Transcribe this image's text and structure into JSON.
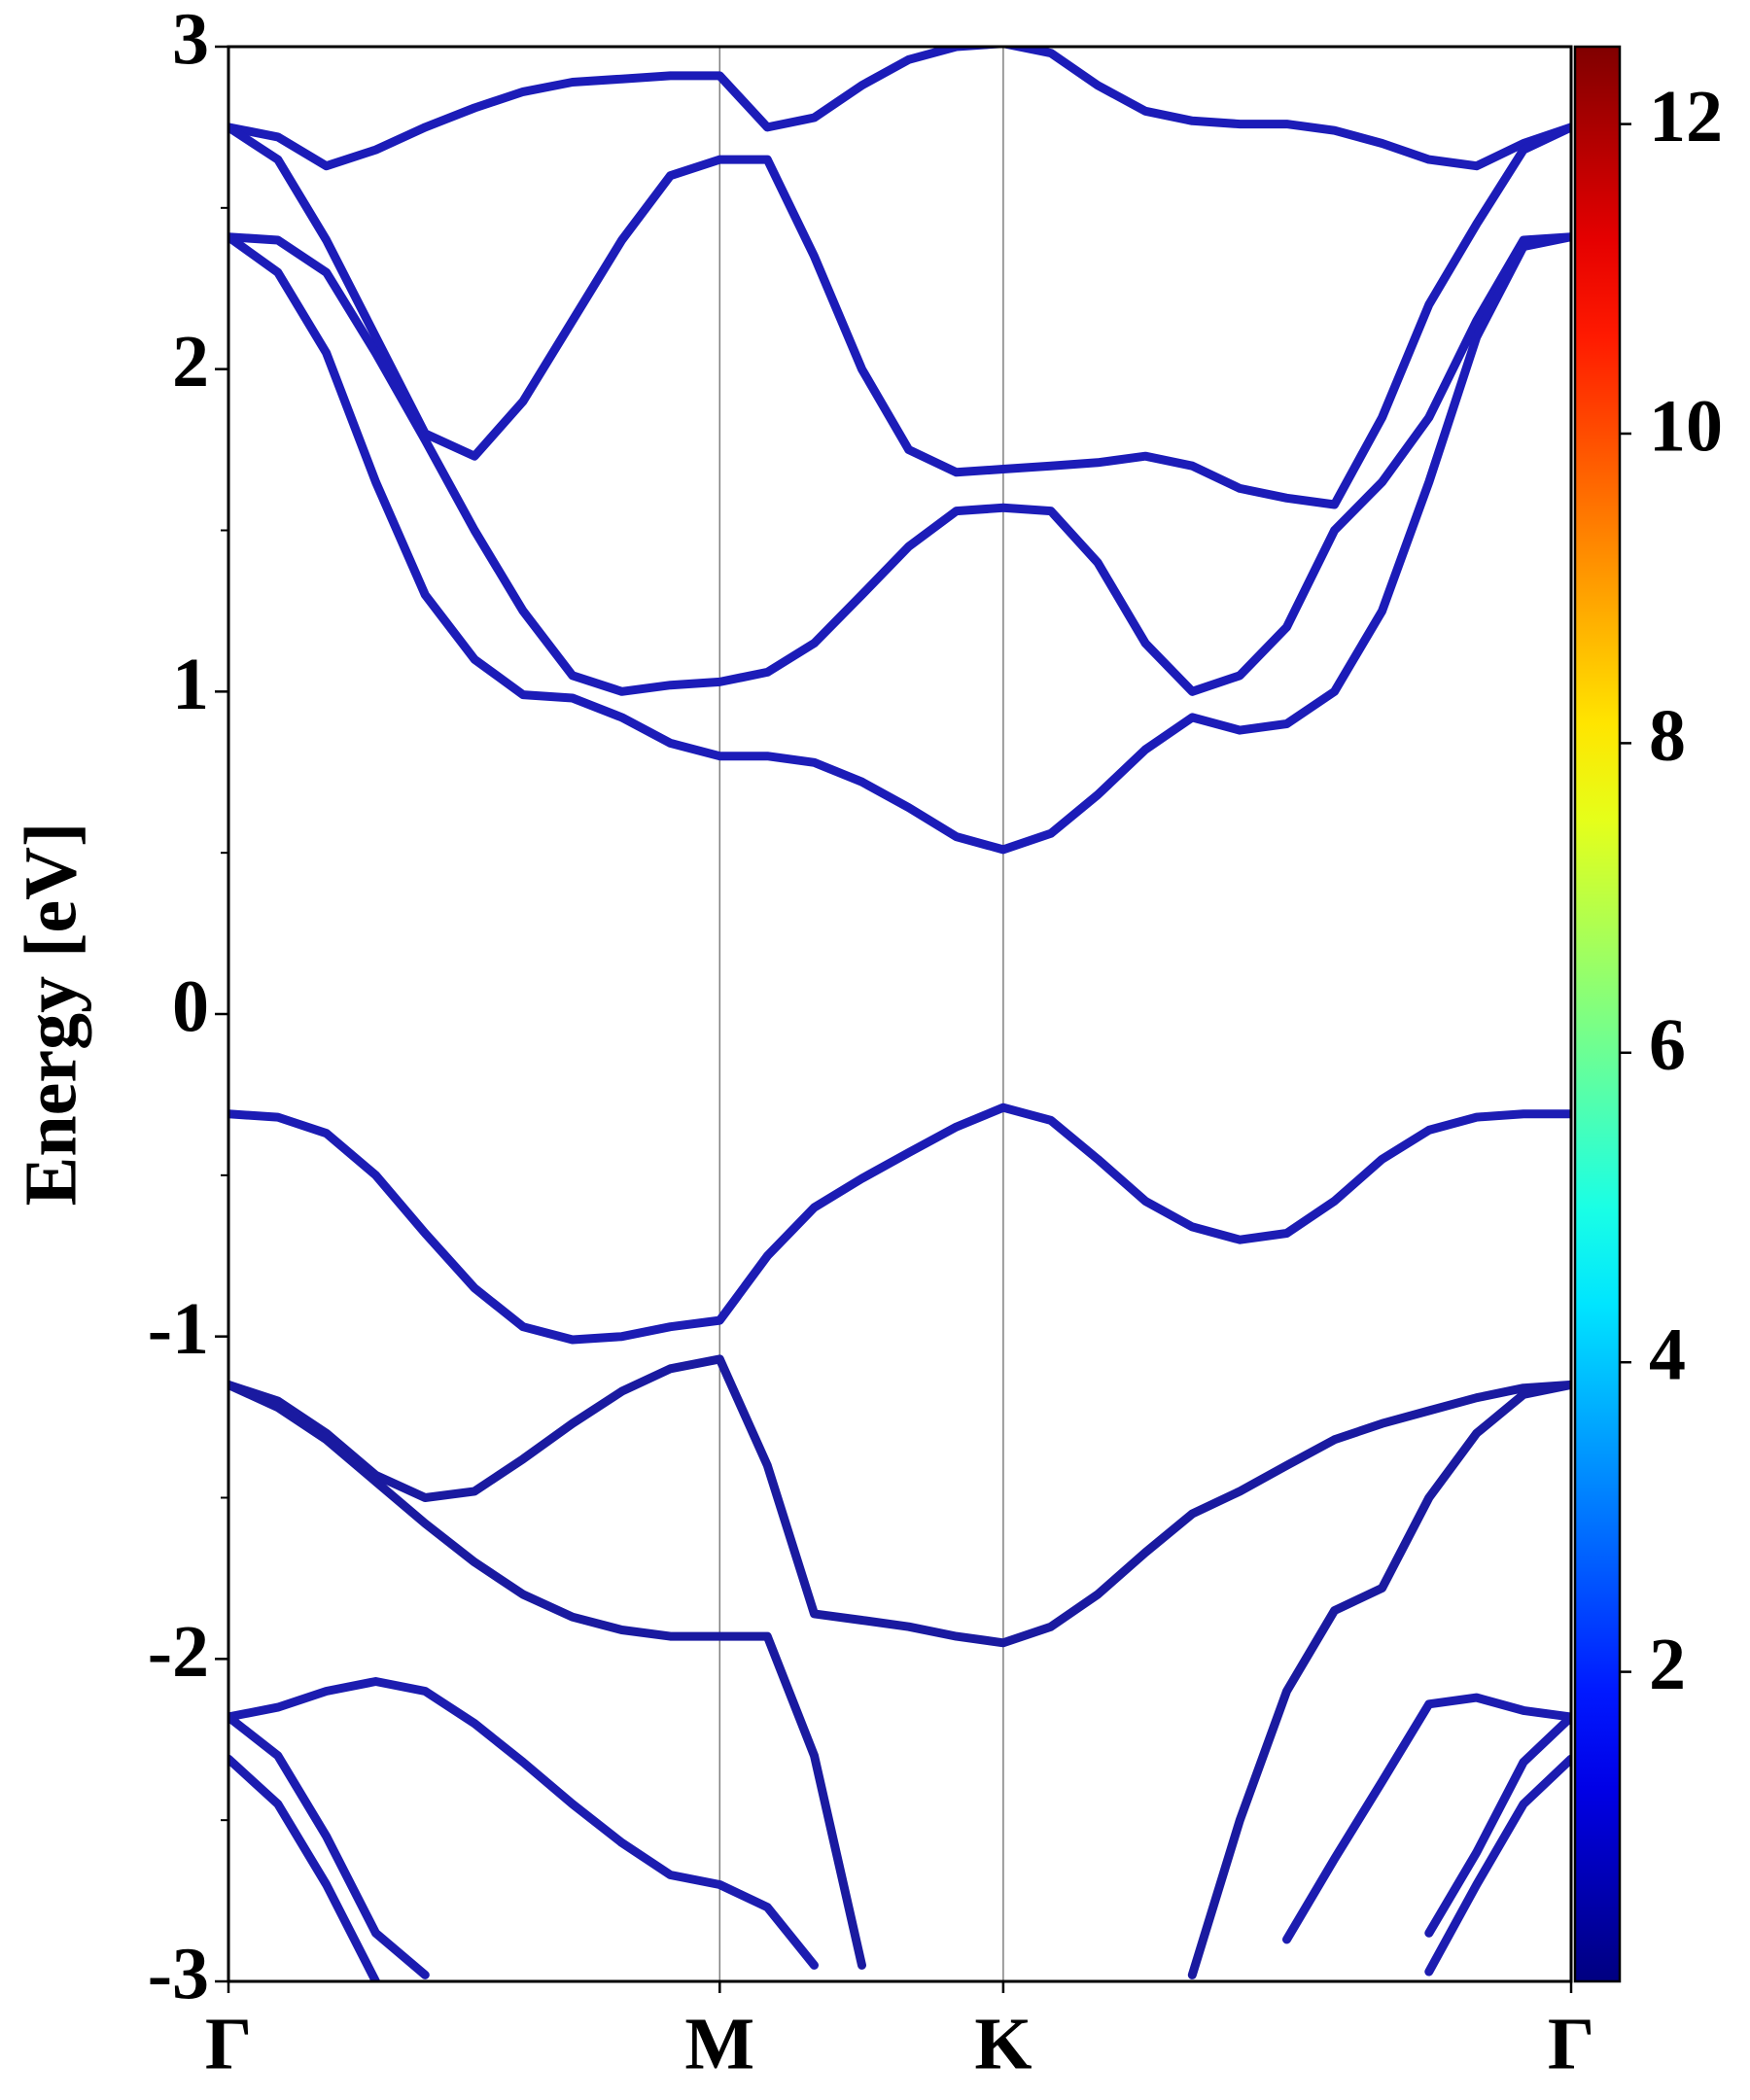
{
  "chart_data": {
    "type": "line",
    "y_label": "Energy [eV]",
    "x": [
      0,
      0.058,
      0.115,
      0.173,
      0.231,
      0.289,
      0.346,
      0.404,
      0.462,
      0.519,
      0.577,
      0.633,
      0.688,
      0.744,
      0.799,
      0.855,
      0.91,
      0.966,
      1.021,
      1.077,
      1.132,
      1.188,
      1.243,
      1.299,
      1.355,
      1.41,
      1.466,
      1.521,
      1.577
    ],
    "xlim": [
      0,
      1.577
    ],
    "xticks": [
      {
        "value": 0,
        "label": "Γ"
      },
      {
        "value": 0.577,
        "label": "M"
      },
      {
        "value": 0.91,
        "label": "K"
      },
      {
        "value": 1.577,
        "label": "Γ"
      }
    ],
    "xgrid": true,
    "ylim": [
      -3,
      3
    ],
    "yticks": [
      -3,
      -2,
      -1,
      0,
      1,
      2,
      3
    ],
    "yminorticks": [
      -2.5,
      -1.5,
      -0.5,
      0.5,
      1.5,
      2.5
    ],
    "series": [
      {
        "color": "#1c1cb8",
        "values": [
          2.75,
          2.72,
          2.63,
          2.68,
          2.75,
          2.81,
          2.86,
          2.89,
          2.9,
          2.91,
          2.91,
          2.75,
          2.78,
          2.88,
          2.96,
          3.0,
          3.01,
          2.98,
          2.88,
          2.8,
          2.77,
          2.76,
          2.76,
          2.74,
          2.7,
          2.65,
          2.63,
          2.7,
          2.75
        ]
      },
      {
        "color": "#1c1cb8",
        "values": [
          2.75,
          2.65,
          2.4,
          2.1,
          1.8,
          1.73,
          1.9,
          2.15,
          2.4,
          2.6,
          2.65,
          2.65,
          2.35,
          2.0,
          1.75,
          1.68,
          1.69,
          1.7,
          1.71,
          1.73,
          1.7,
          1.63,
          1.6,
          1.58,
          1.85,
          2.2,
          2.45,
          2.68,
          2.75
        ]
      },
      {
        "color": "#1c1cb8",
        "values": [
          2.41,
          2.4,
          2.3,
          2.05,
          1.78,
          1.5,
          1.25,
          1.05,
          1.0,
          1.02,
          1.03,
          1.06,
          1.15,
          1.3,
          1.45,
          1.56,
          1.57,
          1.56,
          1.4,
          1.15,
          1.0,
          1.05,
          1.2,
          1.5,
          1.65,
          1.85,
          2.15,
          2.4,
          2.41
        ]
      },
      {
        "color": "#1c1cb8",
        "values": [
          2.41,
          2.3,
          2.05,
          1.65,
          1.3,
          1.1,
          0.99,
          0.98,
          0.92,
          0.84,
          0.8,
          0.8,
          0.78,
          0.72,
          0.64,
          0.55,
          0.51,
          0.56,
          0.68,
          0.82,
          0.92,
          0.88,
          0.9,
          1.0,
          1.25,
          1.65,
          2.1,
          2.38,
          2.41
        ]
      },
      {
        "color": "#1c1cb4",
        "values": [
          -0.31,
          -0.32,
          -0.37,
          -0.5,
          -0.68,
          -0.85,
          -0.97,
          -1.01,
          -1.0,
          -0.97,
          -0.95,
          -0.75,
          -0.6,
          -0.51,
          -0.43,
          -0.35,
          -0.29,
          -0.33,
          -0.45,
          -0.58,
          -0.66,
          -0.7,
          -0.68,
          -0.58,
          -0.45,
          -0.36,
          -0.32,
          -0.31,
          -0.31
        ]
      },
      {
        "color": "#1a1aa0",
        "values": [
          -1.15,
          -1.2,
          -1.3,
          -1.43,
          -1.5,
          -1.48,
          -1.38,
          -1.27,
          -1.17,
          -1.1,
          -1.07,
          -1.4,
          -1.86,
          -1.88,
          -1.9,
          -1.93,
          -1.95,
          -1.9,
          -1.8,
          -1.67,
          -1.55,
          -1.48,
          -1.4,
          -1.32,
          -1.27,
          -1.23,
          -1.19,
          -1.16,
          -1.15
        ]
      },
      {
        "color": "#1a1aa0",
        "values": [
          -1.15,
          -1.22,
          -1.32,
          -1.45,
          -1.58,
          -1.7,
          -1.8,
          -1.87,
          -1.91,
          -1.93,
          -1.93,
          -1.93,
          -2.3,
          -2.95,
          null,
          null,
          null,
          null,
          null,
          null,
          -2.98,
          -2.5,
          -2.1,
          -1.85,
          -1.78,
          -1.5,
          -1.3,
          -1.18,
          -1.15
        ]
      },
      {
        "color": "#1c1cb0",
        "values": [
          -2.18,
          -2.15,
          -2.1,
          -2.07,
          -2.1,
          -2.2,
          -2.32,
          -2.45,
          -2.57,
          -2.67,
          -2.7,
          -2.77,
          -2.95,
          null,
          null,
          null,
          null,
          null,
          null,
          null,
          null,
          null,
          -2.87,
          -2.62,
          -2.38,
          -2.14,
          -2.12,
          -2.16,
          -2.18
        ]
      },
      {
        "color": "#1c1cb0",
        "values": [
          -2.18,
          -2.3,
          -2.55,
          -2.85,
          -2.98,
          null,
          null,
          null,
          null,
          null,
          null,
          null,
          null,
          null,
          null,
          null,
          null,
          null,
          null,
          null,
          null,
          null,
          null,
          null,
          null,
          -2.85,
          -2.6,
          -2.32,
          -2.18
        ]
      },
      {
        "color": "#1c1cb0",
        "values": [
          -2.31,
          -2.45,
          -2.7,
          -3.0,
          null,
          null,
          null,
          null,
          null,
          null,
          null,
          null,
          null,
          null,
          null,
          null,
          null,
          null,
          null,
          null,
          null,
          null,
          null,
          null,
          null,
          -2.97,
          -2.7,
          -2.45,
          -2.31
        ]
      }
    ],
    "colorbar": {
      "colormap": "jet",
      "lim": [
        0,
        12.5
      ],
      "ticks": [
        2,
        4,
        6,
        8,
        10,
        12
      ]
    }
  }
}
